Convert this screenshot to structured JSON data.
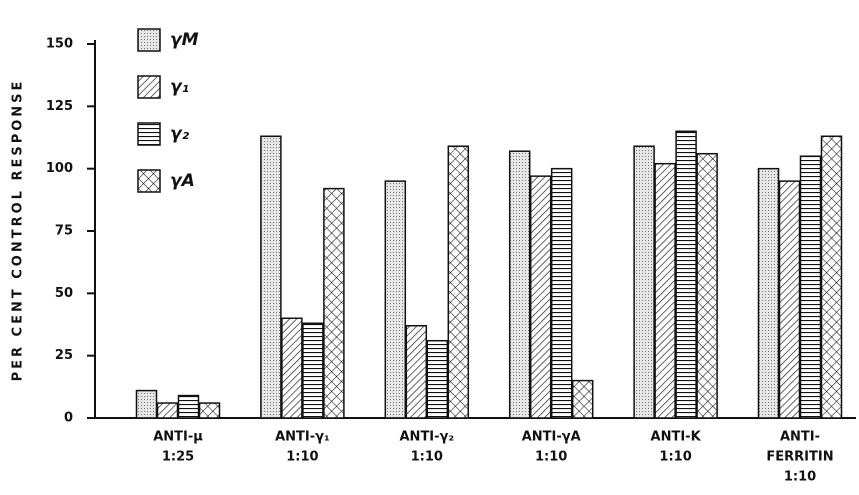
{
  "chart_data": {
    "type": "bar",
    "ylabel": "PER CENT CONTROL RESPONSE",
    "categories": [
      [
        "ANTI-μ",
        "1:25"
      ],
      [
        "ANTI-γ₁",
        "1:10"
      ],
      [
        "ANTI-γ₂",
        "1:10"
      ],
      [
        "ANTI-γA",
        "1:10"
      ],
      [
        "ANTI-K",
        "1:10"
      ],
      [
        "ANTI-",
        "FERRITIN",
        "1:10"
      ]
    ],
    "series": [
      {
        "name": "γM",
        "values": [
          11,
          113,
          95,
          107,
          109,
          100
        ]
      },
      {
        "name": "γ₁",
        "values": [
          6,
          40,
          37,
          97,
          102,
          95
        ]
      },
      {
        "name": "γ₂",
        "values": [
          9,
          38,
          31,
          100,
          115,
          105
        ]
      },
      {
        "name": "γA",
        "values": [
          6,
          92,
          109,
          15,
          106,
          113
        ]
      }
    ],
    "ylim": [
      0,
      150
    ],
    "yticks": [
      0,
      25,
      50,
      75,
      100,
      125,
      150
    ],
    "legend": "upper left"
  }
}
